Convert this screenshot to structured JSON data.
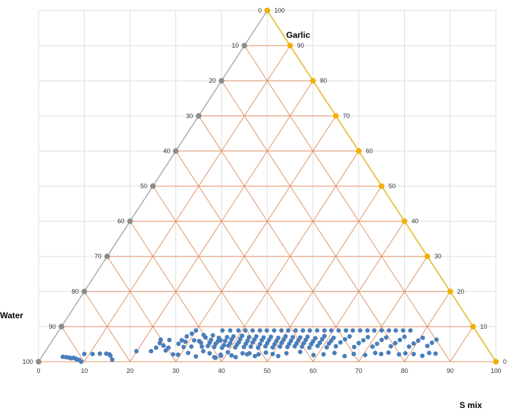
{
  "chart_data": {
    "type": "scatter",
    "subtype": "ternary",
    "axes": {
      "top": {
        "label": "Garlic",
        "ticks": [
          "100",
          "90",
          "80",
          "70",
          "60",
          "50",
          "40",
          "30",
          "20",
          "10",
          "0"
        ]
      },
      "left": {
        "label": "Water",
        "ticks": [
          "0",
          "10",
          "20",
          "30",
          "40",
          "50",
          "60",
          "70",
          "80",
          "90",
          "100"
        ]
      },
      "bottom": {
        "label": "S mix",
        "ticks": [
          "0",
          "10",
          "20",
          "30",
          "40",
          "50",
          "60",
          "70",
          "80",
          "90",
          "100"
        ]
      }
    },
    "grid": true,
    "colors": {
      "points": "#4a7ebb",
      "left_markers": "#8c8c8c",
      "right_markers": "#f0b000",
      "right_edge": "#e8c34a",
      "left_edge": "#aaaaaa",
      "ternary_grid": "#e29066",
      "background_grid": "#dddddd"
    },
    "series": [
      {
        "x": [
          5.3,
          6.0,
          6.6,
          7.1,
          7.6,
          8.1,
          8.4,
          8.9,
          9.3,
          10.0,
          11.8,
          13.4,
          14.8,
          15.5,
          16.1,
          15.7,
          21.4,
          24.6,
          27.8,
          29.4,
          30.5,
          32.7,
          34.4,
          36.0,
          37.4,
          38.4,
          38.7,
          39.8,
          39.9,
          41.4,
          42.2,
          43.1,
          44.6,
          45.6,
          46.1,
          47.3,
          48.1,
          49.7,
          51.2,
          52.4,
          54.2,
          57.2,
          60.1,
          62.3,
          64.7,
          66.9,
          68.9,
          71.4,
          73.6,
          74.9,
          76.5,
          78.8,
          80.2,
          82.0,
          83.9,
          85.4,
          86.8,
          25.7,
          26.5,
          26.7,
          27.3,
          28.4,
          28.6,
          30.6,
          31.3,
          31.7,
          32.1,
          32.4,
          33.4,
          33.5,
          34.0,
          35.1,
          35.5,
          35.7,
          36.1,
          36.5,
          37.0,
          37.4,
          37.7,
          38.1,
          38.4,
          38.7,
          39.2,
          39.4,
          39.8,
          40.1,
          40.5,
          40.8,
          41.2,
          41.5,
          41.9,
          42.2,
          42.6,
          43.0,
          43.4,
          43.8,
          44.1,
          44.5,
          44.9,
          45.3,
          45.7,
          46.0,
          46.4,
          46.8,
          47.2,
          47.6,
          48.0,
          48.4,
          48.8,
          49.2,
          49.6,
          50.0,
          50.4,
          50.8,
          51.2,
          51.6,
          52.0,
          52.4,
          52.8,
          53.2,
          53.6,
          54.0,
          54.4,
          54.8,
          55.2,
          55.6,
          56.0,
          56.4,
          56.8,
          57.2,
          57.6,
          58.0,
          58.4,
          58.8,
          59.2,
          59.6,
          60.0,
          60.5,
          61.0,
          61.5,
          62.0,
          62.5,
          63.0,
          63.5,
          64.0,
          64.5,
          65.0,
          66.0,
          67.0,
          68.0,
          69.0,
          70.0,
          71.0,
          72.0,
          73.0,
          74.0,
          75.0,
          76.0,
          77.0,
          78.0,
          79.0,
          80.0,
          81.0,
          82.0,
          83.0,
          84.0,
          85.0,
          86.0,
          87.0,
          34.4,
          40.2,
          41.9,
          43.7,
          45.2,
          46.8,
          48.4,
          49.9,
          51.5,
          53.1,
          54.6,
          56.2,
          57.8,
          59.3,
          60.9,
          62.5,
          64.0,
          65.6,
          67.2,
          68.7,
          70.3,
          71.9,
          73.4,
          75.0,
          76.6,
          78.1,
          79.7,
          81.3
        ],
        "y": [
          1.4,
          1.3,
          1.2,
          1.0,
          1.1,
          0.9,
          0.6,
          0.5,
          0.0,
          2.2,
          2.2,
          2.3,
          2.3,
          2.1,
          0.6,
          1.7,
          3.0,
          3.0,
          3.2,
          2.1,
          2.0,
          2.5,
          1.5,
          3.0,
          2.4,
          1.3,
          1.1,
          2.0,
          1.7,
          2.7,
          1.8,
          1.3,
          2.4,
          2.1,
          2.4,
          1.6,
          2.1,
          2.6,
          2.2,
          1.6,
          2.4,
          2.8,
          1.9,
          2.1,
          2.5,
          1.6,
          2.2,
          1.9,
          2.5,
          2.2,
          2.6,
          2.1,
          2.4,
          2.2,
          1.7,
          2.5,
          2.3,
          4.0,
          5.3,
          6.3,
          4.6,
          4.0,
          6.2,
          5.1,
          6.1,
          4.2,
          5.7,
          7.2,
          4.3,
          8.0,
          6.1,
          5.9,
          5.4,
          4.3,
          7.6,
          6.9,
          4.5,
          5.4,
          6.2,
          7.5,
          4.2,
          5.1,
          5.8,
          6.8,
          6.1,
          4.0,
          4.7,
          5.9,
          7.0,
          4.6,
          5.3,
          6.4,
          7.2,
          4.1,
          4.9,
          5.6,
          6.5,
          7.4,
          4.2,
          5.1,
          6.0,
          7.0,
          4.3,
          5.5,
          6.3,
          7.2,
          4.0,
          5.0,
          6.1,
          6.9,
          4.4,
          5.3,
          6.2,
          7.1,
          4.1,
          5.0,
          5.9,
          6.8,
          4.3,
          5.4,
          6.3,
          7.2,
          4.2,
          5.1,
          6.0,
          7.0,
          4.4,
          5.2,
          6.1,
          6.9,
          4.3,
          5.3,
          6.2,
          7.1,
          4.0,
          5.0,
          5.8,
          6.7,
          4.5,
          5.4,
          6.4,
          7.3,
          4.1,
          5.2,
          6.0,
          6.8,
          4.4,
          5.5,
          6.4,
          7.2,
          4.2,
          5.3,
          6.1,
          7.0,
          4.3,
          5.1,
          6.2,
          6.9,
          4.4,
          5.3,
          6.2,
          7.1,
          4.3,
          5.2,
          6.0,
          6.8,
          4.5,
          5.4,
          6.3,
          8.9,
          8.9,
          8.9,
          8.9,
          8.9,
          8.9,
          8.9,
          8.9,
          8.9,
          8.9,
          8.9,
          8.9,
          8.9,
          8.9,
          8.9,
          8.9,
          8.9,
          8.9,
          8.9,
          8.9,
          8.9,
          8.9,
          8.9,
          8.9,
          8.9,
          8.9,
          8.9,
          8.9
        ]
      }
    ]
  }
}
